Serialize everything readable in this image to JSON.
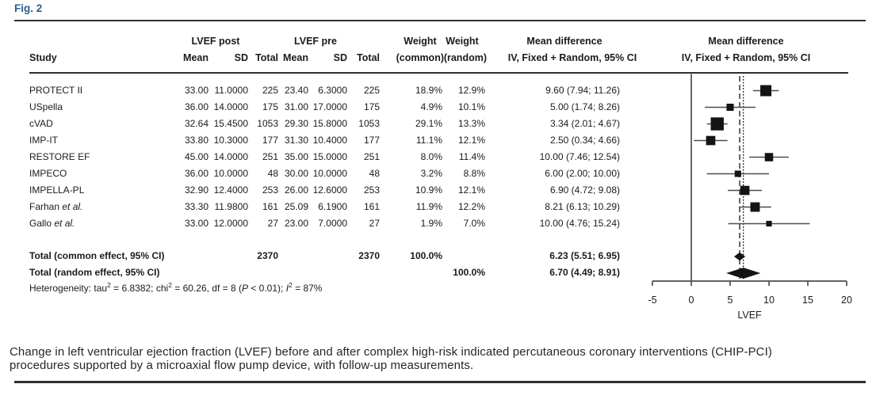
{
  "figure": {
    "label": "Fig. 2",
    "caption_line1": "Change in left ventricular ejection fraction (LVEF) before and after complex high-risk indicated percutaneous coronary interventions (CHIP-PCI)",
    "caption_line2": "procedures supported by a microaxial flow pump device, with follow-up measurements."
  },
  "table": {
    "headers": {
      "study": "Study",
      "group_post": "LVEF post",
      "group_pre": "LVEF pre",
      "mean_post": "Mean",
      "sd_post": "SD",
      "total_post": "Total",
      "mean_pre": "Mean",
      "sd_pre": "SD",
      "total_pre": "Total",
      "weight": "Weight",
      "weight_common_sub": "(common)",
      "weight_random_sub": "(random)",
      "md_title": "Mean difference",
      "md_sub": "IV, Fixed + Random, 95% CI",
      "md_plot_title": "Mean difference",
      "md_plot_sub": "IV, Fixed + Random, 95% CI"
    },
    "rows": [
      {
        "name": [
          {
            "t": "PROTECT II"
          }
        ],
        "mean_post": "33.00",
        "sd_post": "11.0000",
        "total_post": "225",
        "mean_pre": "23.40",
        "sd_pre": "6.3000",
        "total_pre": "225",
        "w_common": "18.9%",
        "w_random": "12.9%",
        "md_text": "9.60 (7.94; 11.26)"
      },
      {
        "name": [
          {
            "t": "USpella"
          }
        ],
        "mean_post": "36.00",
        "sd_post": "14.0000",
        "total_post": "175",
        "mean_pre": "31.00",
        "sd_pre": "17.0000",
        "total_pre": "175",
        "w_common": "4.9%",
        "w_random": "10.1%",
        "md_text": "5.00 (1.74; 8.26)"
      },
      {
        "name": [
          {
            "t": "cVAD"
          }
        ],
        "mean_post": "32.64",
        "sd_post": "15.4500",
        "total_post": "1053",
        "mean_pre": "29.30",
        "sd_pre": "15.8000",
        "total_pre": "1053",
        "w_common": "29.1%",
        "w_random": "13.3%",
        "md_text": "3.34 (2.01; 4.67)"
      },
      {
        "name": [
          {
            "t": "IMP-IT"
          }
        ],
        "mean_post": "33.80",
        "sd_post": "10.3000",
        "total_post": "177",
        "mean_pre": "31.30",
        "sd_pre": "10.4000",
        "total_pre": "177",
        "w_common": "11.1%",
        "w_random": "12.1%",
        "md_text": "2.50 (0.34; 4.66)"
      },
      {
        "name": [
          {
            "t": "RESTORE EF"
          }
        ],
        "mean_post": "45.00",
        "sd_post": "14.0000",
        "total_post": "251",
        "mean_pre": "35.00",
        "sd_pre": "15.0000",
        "total_pre": "251",
        "w_common": "8.0%",
        "w_random": "11.4%",
        "md_text": "10.00 (7.46; 12.54)"
      },
      {
        "name": [
          {
            "t": "IMPECO"
          }
        ],
        "mean_post": "36.00",
        "sd_post": "10.0000",
        "total_post": "48",
        "mean_pre": "30.00",
        "sd_pre": "10.0000",
        "total_pre": "48",
        "w_common": "3.2%",
        "w_random": "8.8%",
        "md_text": "6.00 (2.00; 10.00)"
      },
      {
        "name": [
          {
            "t": "IMPELLA-PL"
          }
        ],
        "mean_post": "32.90",
        "sd_post": "12.4000",
        "total_post": "253",
        "mean_pre": "26.00",
        "sd_pre": "12.6000",
        "total_pre": "253",
        "w_common": "10.9%",
        "w_random": "12.1%",
        "md_text": "6.90 (4.72; 9.08)"
      },
      {
        "name": [
          {
            "t": "Farhan "
          },
          {
            "t": "et al.",
            "i": true
          }
        ],
        "mean_post": "33.30",
        "sd_post": "11.9800",
        "total_post": "161",
        "mean_pre": "25.09",
        "sd_pre": "6.1900",
        "total_pre": "161",
        "w_common": "11.9%",
        "w_random": "12.2%",
        "md_text": "8.21 (6.13; 10.29)"
      },
      {
        "name": [
          {
            "t": "Gallo "
          },
          {
            "t": "et al.",
            "i": true
          }
        ],
        "mean_post": "33.00",
        "sd_post": "12.0000",
        "total_post": "27",
        "mean_pre": "23.00",
        "sd_pre": "7.0000",
        "total_pre": "27",
        "w_common": "1.9%",
        "w_random": "7.0%",
        "md_text": "10.00 (4.76; 15.24)"
      }
    ],
    "totals": [
      {
        "name": [
          {
            "t": "Total (common effect, 95% CI)"
          }
        ],
        "total_post": "2370",
        "total_pre": "2370",
        "w_common": "100.0%",
        "w_random": "",
        "md_text": "6.23 (5.51; 6.95)"
      },
      {
        "name": [
          {
            "t": "Total (random effect, 95% CI)"
          }
        ],
        "total_post": "",
        "total_pre": "",
        "w_common": "",
        "w_random": "100.0%",
        "md_text": "6.70 (4.49; 8.91)"
      }
    ],
    "heterogeneity": [
      {
        "t": "Heterogeneity: tau"
      },
      {
        "t": "2",
        "sup": true
      },
      {
        "t": " = 6.8382; chi"
      },
      {
        "t": "2",
        "sup": true
      },
      {
        "t": " = 60.26, df = 8 ("
      },
      {
        "t": "P",
        "i": true
      },
      {
        "t": " < 0.01); "
      },
      {
        "t": "I",
        "i": true
      },
      {
        "t": "2",
        "sup": true
      },
      {
        "t": " = 87%"
      }
    ]
  },
  "chart_data": {
    "type": "forest",
    "xlabel": "LVEF",
    "x_ticks": [
      -5,
      0,
      5,
      10,
      15,
      20
    ],
    "xlim": [
      -5,
      20
    ],
    "zero_line": 0,
    "common_effect": {
      "md": 6.23,
      "low": 5.51,
      "high": 6.95,
      "weight": 100.0
    },
    "random_effect": {
      "md": 6.7,
      "low": 4.49,
      "high": 8.91,
      "weight": 100.0
    },
    "studies": [
      {
        "name": "PROTECT II",
        "md": 9.6,
        "low": 7.94,
        "high": 11.26,
        "weight_common": 18.9,
        "weight_random": 12.9
      },
      {
        "name": "USpella",
        "md": 5.0,
        "low": 1.74,
        "high": 8.26,
        "weight_common": 4.9,
        "weight_random": 10.1
      },
      {
        "name": "cVAD",
        "md": 3.34,
        "low": 2.01,
        "high": 4.67,
        "weight_common": 29.1,
        "weight_random": 13.3
      },
      {
        "name": "IMP-IT",
        "md": 2.5,
        "low": 0.34,
        "high": 4.66,
        "weight_common": 11.1,
        "weight_random": 12.1
      },
      {
        "name": "RESTORE EF",
        "md": 10.0,
        "low": 7.46,
        "high": 12.54,
        "weight_common": 8.0,
        "weight_random": 11.4
      },
      {
        "name": "IMPECO",
        "md": 6.0,
        "low": 2.0,
        "high": 10.0,
        "weight_common": 3.2,
        "weight_random": 8.8
      },
      {
        "name": "IMPELLA-PL",
        "md": 6.9,
        "low": 4.72,
        "high": 9.08,
        "weight_common": 10.9,
        "weight_random": 12.1
      },
      {
        "name": "Farhan et al.",
        "md": 8.21,
        "low": 6.13,
        "high": 10.29,
        "weight_common": 11.9,
        "weight_random": 12.2
      },
      {
        "name": "Gallo et al.",
        "md": 10.0,
        "low": 4.76,
        "high": 15.24,
        "weight_common": 1.9,
        "weight_random": 7.0
      }
    ]
  },
  "colors": {
    "accent": "#2a5d90",
    "text": "#1b1b1b",
    "rule": "#2f2f2f",
    "marker": "#141414",
    "ci_line": "#4d4d4d"
  }
}
